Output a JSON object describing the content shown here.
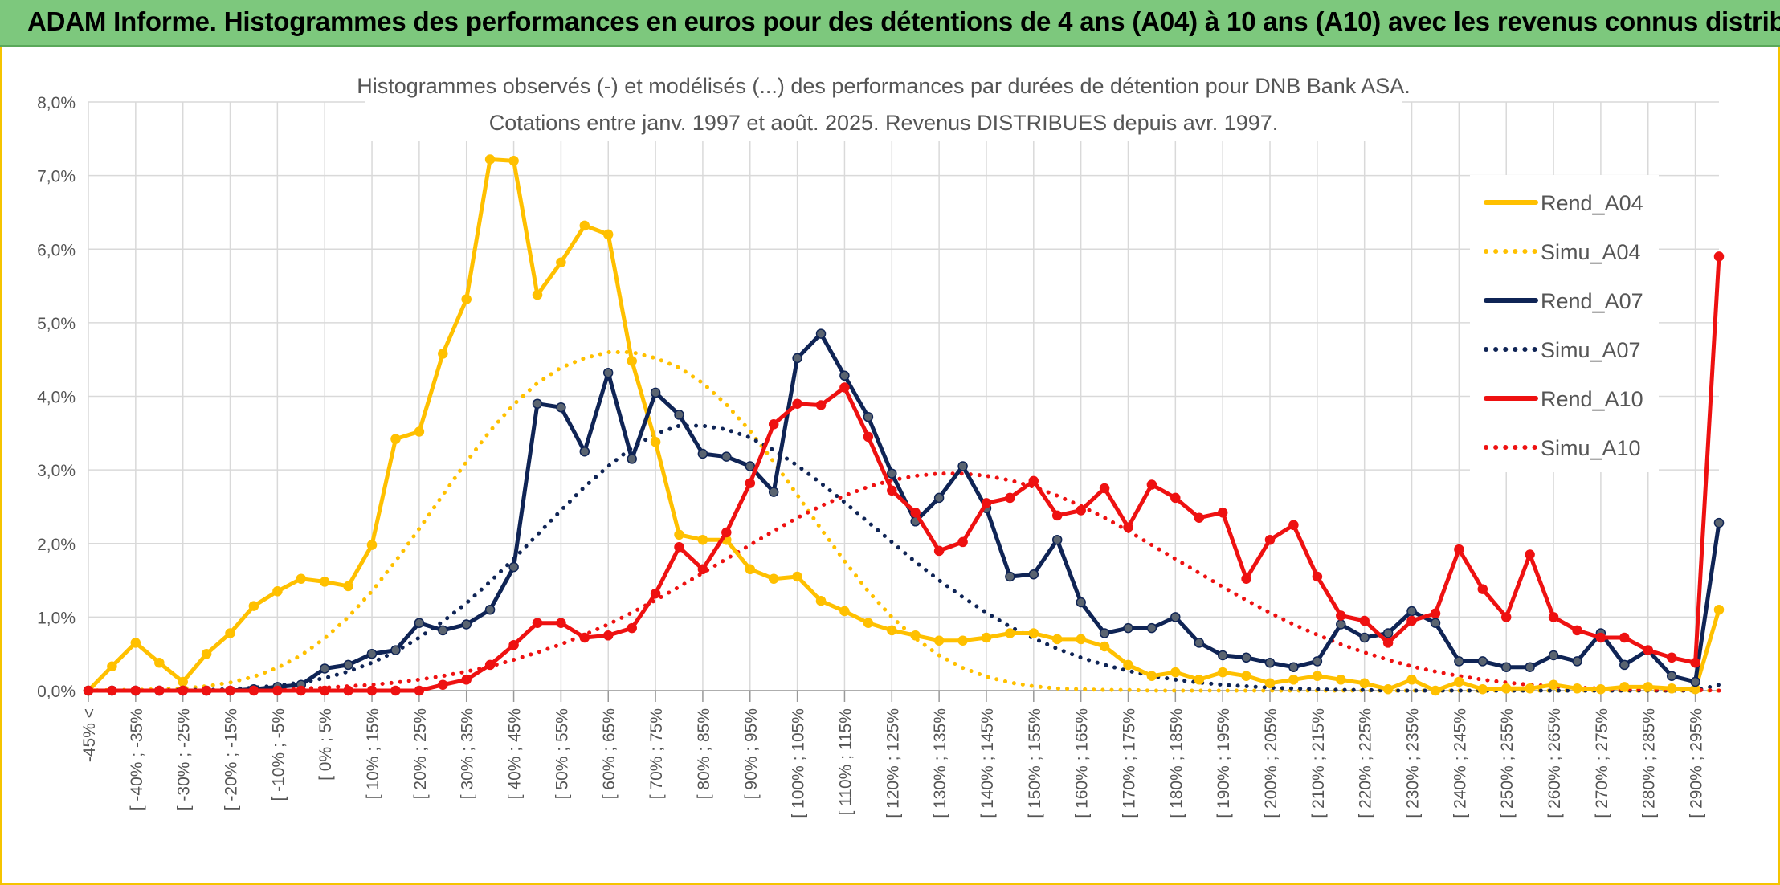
{
  "header": {
    "title": "ADAM Informe. Histogrammes des performances en euros pour des détentions de 4 ans (A04) à 10 ans (A10) avec les revenus connus distribués"
  },
  "colors": {
    "header_bg": "#7dc87d",
    "frame": "#f5c400",
    "a04": "#ffc000",
    "a07": "#0f2455",
    "a10": "#ee1111"
  },
  "chart_data": {
    "type": "line",
    "title_lines": [
      "Histogrammes observés (-) et modélisés (...) des performances par durées de détention pour DNB Bank ASA.",
      "Cotations entre janv. 1997 et août. 2025. Revenus DISTRIBUES depuis avr. 1997."
    ],
    "ylim": [
      0,
      8
    ],
    "y_ticks": [
      "0,0%",
      "1,0%",
      "2,0%",
      "3,0%",
      "4,0%",
      "5,0%",
      "6,0%",
      "7,0%",
      "8,0%"
    ],
    "x_tick_labels": [
      "-45% <",
      "[ -40% ; -35%",
      "[ -30% ; -25%",
      "[ -20% ; -15%",
      "[ -10% ; -5%",
      "[ 0% ; 5%",
      "[ 10% ; 15%",
      "[ 20% ; 25%",
      "[ 30% ; 35%",
      "[ 40% ; 45%",
      "[ 50% ; 55%",
      "[ 60% ; 65%",
      "[ 70% ; 75%",
      "[ 80% ; 85%",
      "[ 90% ; 95%",
      "[ 100% ; 105%",
      "[ 110% ; 115%",
      "[ 120% ; 125%",
      "[ 130% ; 135%",
      "[ 140% ; 145%",
      "[ 150% ; 155%",
      "[ 160% ; 165%",
      "[ 170% ; 175%",
      "[ 180% ; 185%",
      "[ 190% ; 195%",
      "[ 200% ; 205%",
      "[ 210% ; 215%",
      "[ 220% ; 225%",
      "[ 230% ; 235%",
      "[ 240% ; 245%",
      "[ 250% ; 255%",
      "[ 260% ; 265%",
      "[ 270% ; 275%",
      "[ 280% ; 285%",
      "[ 290% ; 295%"
    ],
    "legend_placement": "right",
    "series": [
      {
        "name": "Rend_A04",
        "style": "solid",
        "color": "#ffc000",
        "markers": true,
        "values": [
          0.0,
          0.33,
          0.65,
          0.38,
          0.12,
          0.5,
          0.78,
          1.15,
          1.35,
          1.52,
          1.48,
          1.42,
          1.98,
          3.42,
          3.52,
          4.58,
          5.32,
          7.22,
          7.2,
          5.38,
          5.82,
          6.32,
          6.2,
          4.48,
          3.38,
          2.12,
          2.05,
          2.05,
          1.65,
          1.52,
          1.55,
          1.22,
          1.08,
          0.92,
          0.82,
          0.75,
          0.68,
          0.68,
          0.72,
          0.78,
          0.78,
          0.7,
          0.7,
          0.6,
          0.35,
          0.2,
          0.25,
          0.15,
          0.25,
          0.2,
          0.1,
          0.15,
          0.2,
          0.15,
          0.1,
          0.02,
          0.15,
          0.0,
          0.12,
          0.02,
          0.03,
          0.03,
          0.08,
          0.03,
          0.02,
          0.05,
          0.05,
          0.03,
          0.02,
          1.1
        ]
      },
      {
        "name": "Simu_A04",
        "style": "dotted",
        "color": "#ffc000",
        "markers": false,
        "values": [
          0.0,
          0.01,
          0.01,
          0.02,
          0.03,
          0.06,
          0.11,
          0.19,
          0.31,
          0.48,
          0.71,
          1.0,
          1.35,
          1.76,
          2.2,
          2.66,
          3.11,
          3.53,
          3.89,
          4.18,
          4.39,
          4.52,
          4.6,
          4.6,
          4.52,
          4.39,
          4.18,
          3.89,
          3.53,
          3.11,
          2.66,
          2.2,
          1.76,
          1.35,
          1.0,
          0.71,
          0.48,
          0.31,
          0.19,
          0.11,
          0.06,
          0.03,
          0.02,
          0.01,
          0.01,
          0.0,
          0.0,
          0.0,
          0.0,
          0.0,
          0.0,
          0.0,
          0.0,
          0.0,
          0.0,
          0.0,
          0.0,
          0.0,
          0.0,
          0.0,
          0.0,
          0.0,
          0.0,
          0.0,
          0.0,
          0.0,
          0.0,
          0.0,
          0.0,
          0.0
        ]
      },
      {
        "name": "Rend_A07",
        "style": "solid",
        "color": "#0f2455",
        "markers": true,
        "values": [
          0.0,
          0.0,
          0.0,
          0.0,
          0.0,
          0.0,
          0.0,
          0.02,
          0.05,
          0.08,
          0.3,
          0.35,
          0.5,
          0.55,
          0.92,
          0.82,
          0.9,
          1.1,
          1.68,
          3.9,
          3.85,
          3.25,
          4.32,
          3.15,
          4.05,
          3.75,
          3.22,
          3.18,
          3.05,
          2.7,
          4.52,
          4.85,
          4.28,
          3.72,
          2.95,
          2.3,
          2.62,
          3.05,
          2.48,
          1.55,
          1.58,
          2.05,
          1.2,
          0.78,
          0.85,
          0.85,
          1.0,
          0.65,
          0.48,
          0.45,
          0.38,
          0.32,
          0.4,
          0.9,
          0.72,
          0.78,
          1.08,
          0.92,
          0.4,
          0.4,
          0.32,
          0.32,
          0.48,
          0.4,
          0.78,
          0.35,
          0.55,
          0.2,
          0.12,
          2.28
        ]
      },
      {
        "name": "Simu_A07",
        "style": "dotted",
        "color": "#0f2455",
        "markers": false,
        "values": [
          0.0,
          0.0,
          0.0,
          0.0,
          0.01,
          0.01,
          0.02,
          0.04,
          0.07,
          0.11,
          0.17,
          0.26,
          0.38,
          0.53,
          0.72,
          0.94,
          1.19,
          1.48,
          1.79,
          2.12,
          2.45,
          2.77,
          3.05,
          3.3,
          3.49,
          3.6,
          3.6,
          3.55,
          3.44,
          3.27,
          3.06,
          2.82,
          2.56,
          2.29,
          2.02,
          1.75,
          1.5,
          1.27,
          1.06,
          0.87,
          0.71,
          0.57,
          0.45,
          0.35,
          0.27,
          0.2,
          0.15,
          0.11,
          0.08,
          0.06,
          0.04,
          0.03,
          0.02,
          0.01,
          0.01,
          0.0,
          0.0,
          0.0,
          0.0,
          0.0,
          0.0,
          0.0,
          0.0,
          0.0,
          0.0,
          0.0,
          0.0,
          0.0,
          0.0,
          0.08
        ]
      },
      {
        "name": "Rend_A10",
        "style": "solid",
        "color": "#ee1111",
        "markers": true,
        "values": [
          0.0,
          0.0,
          0.0,
          0.0,
          0.0,
          0.0,
          0.0,
          0.0,
          0.0,
          0.0,
          0.0,
          0.0,
          0.0,
          0.0,
          0.0,
          0.08,
          0.15,
          0.35,
          0.62,
          0.92,
          0.92,
          0.72,
          0.75,
          0.85,
          1.32,
          1.95,
          1.65,
          2.15,
          2.82,
          3.62,
          3.9,
          3.88,
          4.12,
          3.45,
          2.72,
          2.42,
          1.9,
          2.02,
          2.55,
          2.62,
          2.85,
          2.38,
          2.45,
          2.75,
          2.22,
          2.8,
          2.62,
          2.35,
          2.42,
          1.52,
          2.05,
          2.25,
          1.55,
          1.02,
          0.95,
          0.65,
          0.95,
          1.05,
          1.92,
          1.38,
          1.0,
          1.85,
          1.0,
          0.82,
          0.72,
          0.72,
          0.55,
          0.45,
          0.38,
          5.9
        ]
      },
      {
        "name": "Simu_A10",
        "style": "dotted",
        "color": "#ee1111",
        "markers": false,
        "values": [
          0.0,
          0.0,
          0.0,
          0.0,
          0.0,
          0.0,
          0.01,
          0.01,
          0.02,
          0.03,
          0.04,
          0.06,
          0.08,
          0.11,
          0.15,
          0.2,
          0.26,
          0.33,
          0.42,
          0.52,
          0.63,
          0.76,
          0.9,
          1.06,
          1.23,
          1.41,
          1.6,
          1.79,
          1.98,
          2.17,
          2.35,
          2.51,
          2.65,
          2.77,
          2.86,
          2.92,
          2.95,
          2.95,
          2.92,
          2.86,
          2.77,
          2.65,
          2.51,
          2.35,
          2.17,
          1.98,
          1.79,
          1.6,
          1.41,
          1.23,
          1.06,
          0.9,
          0.76,
          0.63,
          0.52,
          0.42,
          0.33,
          0.26,
          0.2,
          0.15,
          0.11,
          0.08,
          0.06,
          0.04,
          0.03,
          0.02,
          0.01,
          0.01,
          0.01,
          0.0
        ]
      }
    ]
  }
}
